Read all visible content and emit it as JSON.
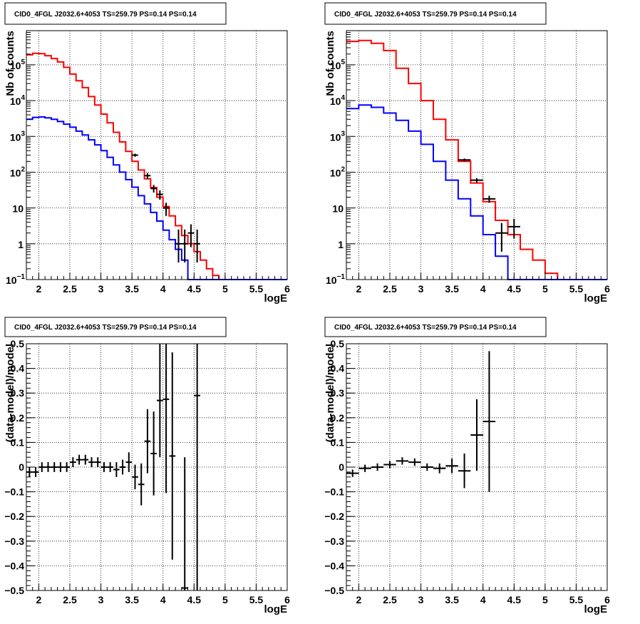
{
  "chart_data": [
    {
      "type": "line",
      "title": "CID0_4FGL J2032.6+4053 TS=259.79 PS=0.14 PS=0.14",
      "xlabel": "logE",
      "ylabel": "Nb of counts",
      "xlim": [
        1.8,
        6.0
      ],
      "ylim": [
        0.1,
        900000
      ],
      "yscale": "log",
      "grid": true,
      "xticks": [
        "2",
        "2.5",
        "3",
        "3.5",
        "4",
        "4.5",
        "5",
        "5.5",
        "6"
      ],
      "yticks": [
        {
          "v": 0.1,
          "label": "10",
          "sup": "−1"
        },
        {
          "v": 1,
          "label": "1",
          "sup": ""
        },
        {
          "v": 10,
          "label": "10",
          "sup": ""
        },
        {
          "v": 100,
          "label": "10",
          "sup": "2"
        },
        {
          "v": 1000,
          "label": "10",
          "sup": "3"
        },
        {
          "v": 10000,
          "label": "10",
          "sup": "4"
        },
        {
          "v": 100000,
          "label": "10",
          "sup": "5"
        }
      ],
      "bin_width": 0.1,
      "series": [
        {
          "color": "#ff0000",
          "kind": "step",
          "x0": 1.8,
          "values": [
            190000,
            210000,
            205000,
            180000,
            150000,
            120000,
            85000,
            55000,
            36000,
            23000,
            13000,
            7500,
            4200,
            2400,
            1300,
            700,
            380,
            200,
            115,
            65,
            37,
            20,
            11,
            6,
            3.2,
            1.7,
            1.0,
            0.6,
            0.35,
            0.2,
            0.13,
            0.1,
            0.1,
            0.1,
            0.1,
            0.1,
            0.1,
            0.1,
            0.1,
            0.1,
            0.1,
            0.1
          ]
        },
        {
          "color": "#0000ff",
          "kind": "step",
          "x0": 1.8,
          "values": [
            3000,
            3400,
            3500,
            3300,
            3000,
            2600,
            2200,
            1800,
            1400,
            1100,
            800,
            580,
            400,
            260,
            160,
            100,
            62,
            38,
            22,
            13,
            7.5,
            4.3,
            2.4,
            1.3,
            0.7,
            0.35,
            0.1,
            0.1,
            0.1,
            0.1,
            0.1,
            0.1,
            0.1,
            0.1,
            0.1,
            0.1,
            0.1,
            0.1,
            0.1,
            0.1,
            0.1,
            0.1
          ]
        },
        {
          "color": "#000000",
          "kind": "errorbar",
          "points": [
            {
              "x": 3.55,
              "y": 300,
              "lo": 270,
              "hi": 330
            },
            {
              "x": 3.75,
              "y": 80,
              "lo": 65,
              "hi": 95
            },
            {
              "x": 3.85,
              "y": 35,
              "lo": 27,
              "hi": 44
            },
            {
              "x": 3.95,
              "y": 24,
              "lo": 17,
              "hi": 31
            },
            {
              "x": 4.05,
              "y": 10,
              "lo": 6,
              "hi": 14
            },
            {
              "x": 4.25,
              "y": 1,
              "lo": 0.3,
              "hi": 2.5
            },
            {
              "x": 4.35,
              "y": 1,
              "lo": 0.3,
              "hi": 2.5
            },
            {
              "x": 4.45,
              "y": 2,
              "lo": 0.8,
              "hi": 3.5
            },
            {
              "x": 4.55,
              "y": 1,
              "lo": 0.3,
              "hi": 2.5
            }
          ]
        }
      ]
    },
    {
      "type": "line",
      "title": "CID0_4FGL J2032.6+4053 TS=259.79 PS=0.14 PS=0.14",
      "xlabel": "logE",
      "ylabel": "Nb of counts",
      "xlim": [
        1.8,
        6.0
      ],
      "ylim": [
        0.1,
        900000
      ],
      "yscale": "log",
      "grid": true,
      "xticks": [
        "2",
        "2.5",
        "3",
        "3.5",
        "4",
        "4.5",
        "5",
        "5.5",
        "6"
      ],
      "yticks": [
        {
          "v": 0.1,
          "label": "10",
          "sup": "−1"
        },
        {
          "v": 1,
          "label": "1",
          "sup": ""
        },
        {
          "v": 10,
          "label": "10",
          "sup": ""
        },
        {
          "v": 100,
          "label": "10",
          "sup": "2"
        },
        {
          "v": 1000,
          "label": "10",
          "sup": "3"
        },
        {
          "v": 10000,
          "label": "10",
          "sup": "4"
        },
        {
          "v": 100000,
          "label": "10",
          "sup": "5"
        }
      ],
      "bin_width": 0.2,
      "series": [
        {
          "color": "#ff0000",
          "kind": "step",
          "x0": 1.8,
          "values": [
            450000,
            480000,
            400000,
            250000,
            80000,
            30000,
            10000,
            3000,
            800,
            200,
            50,
            15,
            4.5,
            1.8,
            0.7,
            0.35,
            0.15,
            0.1,
            0.1,
            0.1,
            0.1
          ]
        },
        {
          "color": "#0000ff",
          "kind": "step",
          "x0": 1.8,
          "values": [
            6000,
            7500,
            6500,
            4500,
            2800,
            1400,
            600,
            200,
            60,
            18,
            6,
            1.8,
            0.45,
            0.1,
            0.1,
            0.1,
            0.1,
            0.1,
            0.1,
            0.1,
            0.1
          ]
        },
        {
          "color": "#000000",
          "kind": "errorbar",
          "xerr": 0.1,
          "points": [
            {
              "x": 3.7,
              "y": 220,
              "lo": 200,
              "hi": 240
            },
            {
              "x": 3.9,
              "y": 60,
              "lo": 52,
              "hi": 68
            },
            {
              "x": 4.1,
              "y": 18,
              "lo": 14,
              "hi": 22
            },
            {
              "x": 4.3,
              "y": 2,
              "lo": 0.6,
              "hi": 3.8
            },
            {
              "x": 4.5,
              "y": 3,
              "lo": 1.4,
              "hi": 5
            }
          ]
        }
      ]
    },
    {
      "type": "scatter",
      "title": "CID0_4FGL J2032.6+4053 TS=259.79 PS=0.14 PS=0.14",
      "xlabel": "logE",
      "ylabel": "(data-model)/model",
      "xlim": [
        1.8,
        6.0
      ],
      "ylim": [
        -0.5,
        0.5
      ],
      "grid": true,
      "xticks": [
        "2",
        "2.5",
        "3",
        "3.5",
        "4",
        "4.5",
        "5",
        "5.5",
        "6"
      ],
      "yticks": [
        "−0.5",
        "−0.4",
        "−0.3",
        "−0.2",
        "−0.1",
        "0",
        "0.1",
        "0.2",
        "0.3",
        "0.4",
        "0.5"
      ],
      "xerr": 0.05,
      "series": [
        {
          "color": "#000000",
          "kind": "errorbar",
          "points": [
            {
              "x": 1.85,
              "y": -0.02,
              "e": 0.02
            },
            {
              "x": 1.95,
              "y": -0.02,
              "e": 0.02
            },
            {
              "x": 2.05,
              "y": 0.0,
              "e": 0.02
            },
            {
              "x": 2.15,
              "y": 0.0,
              "e": 0.02
            },
            {
              "x": 2.25,
              "y": 0.0,
              "e": 0.02
            },
            {
              "x": 2.35,
              "y": 0.0,
              "e": 0.02
            },
            {
              "x": 2.45,
              "y": 0.0,
              "e": 0.02
            },
            {
              "x": 2.55,
              "y": 0.02,
              "e": 0.02
            },
            {
              "x": 2.65,
              "y": 0.03,
              "e": 0.02
            },
            {
              "x": 2.75,
              "y": 0.03,
              "e": 0.02
            },
            {
              "x": 2.85,
              "y": 0.02,
              "e": 0.02
            },
            {
              "x": 2.95,
              "y": 0.02,
              "e": 0.02
            },
            {
              "x": 3.05,
              "y": 0.0,
              "e": 0.02
            },
            {
              "x": 3.15,
              "y": 0.0,
              "e": 0.02
            },
            {
              "x": 3.25,
              "y": -0.01,
              "e": 0.03
            },
            {
              "x": 3.35,
              "y": 0.0,
              "e": 0.03
            },
            {
              "x": 3.45,
              "y": 0.02,
              "e": 0.04
            },
            {
              "x": 3.55,
              "y": -0.04,
              "e": 0.05
            },
            {
              "x": 3.65,
              "y": -0.07,
              "e": 0.085
            },
            {
              "x": 3.75,
              "y": 0.105,
              "e": 0.13
            },
            {
              "x": 3.85,
              "y": 0.055,
              "e": 0.17
            },
            {
              "x": 3.95,
              "y": 0.27,
              "e": 0.23
            },
            {
              "x": 4.05,
              "y": 0.275,
              "e": 0.38
            },
            {
              "x": 4.15,
              "y": 0.045,
              "e": 0.42
            },
            {
              "x": 4.35,
              "y": -0.49,
              "e": 0.53
            },
            {
              "x": 4.55,
              "y": 0.29,
              "e": 0.79
            }
          ]
        }
      ]
    },
    {
      "type": "scatter",
      "title": "CID0_4FGL J2032.6+4053 TS=259.79 PS=0.14 PS=0.14",
      "xlabel": "logE",
      "ylabel": "(data-model)/model",
      "xlim": [
        1.8,
        6.0
      ],
      "ylim": [
        -0.5,
        0.5
      ],
      "grid": true,
      "xticks": [
        "2",
        "2.5",
        "3",
        "3.5",
        "4",
        "4.5",
        "5",
        "5.5",
        "6"
      ],
      "yticks": [
        "−0.5",
        "−0.4",
        "−0.3",
        "−0.2",
        "−0.1",
        "0",
        "0.1",
        "0.2",
        "0.3",
        "0.4",
        "0.5"
      ],
      "xerr": 0.1,
      "series": [
        {
          "color": "#000000",
          "kind": "errorbar",
          "points": [
            {
              "x": 1.9,
              "y": -0.025,
              "e": 0.015
            },
            {
              "x": 2.1,
              "y": -0.005,
              "e": 0.015
            },
            {
              "x": 2.3,
              "y": 0.0,
              "e": 0.015
            },
            {
              "x": 2.5,
              "y": 0.01,
              "e": 0.015
            },
            {
              "x": 2.7,
              "y": 0.025,
              "e": 0.015
            },
            {
              "x": 2.9,
              "y": 0.02,
              "e": 0.015
            },
            {
              "x": 3.1,
              "y": 0.0,
              "e": 0.015
            },
            {
              "x": 3.3,
              "y": -0.005,
              "e": 0.02
            },
            {
              "x": 3.5,
              "y": 0.005,
              "e": 0.03
            },
            {
              "x": 3.7,
              "y": -0.015,
              "e": 0.07
            },
            {
              "x": 3.9,
              "y": 0.13,
              "e": 0.145
            },
            {
              "x": 4.1,
              "y": 0.185,
              "e": 0.285
            }
          ]
        }
      ]
    }
  ]
}
